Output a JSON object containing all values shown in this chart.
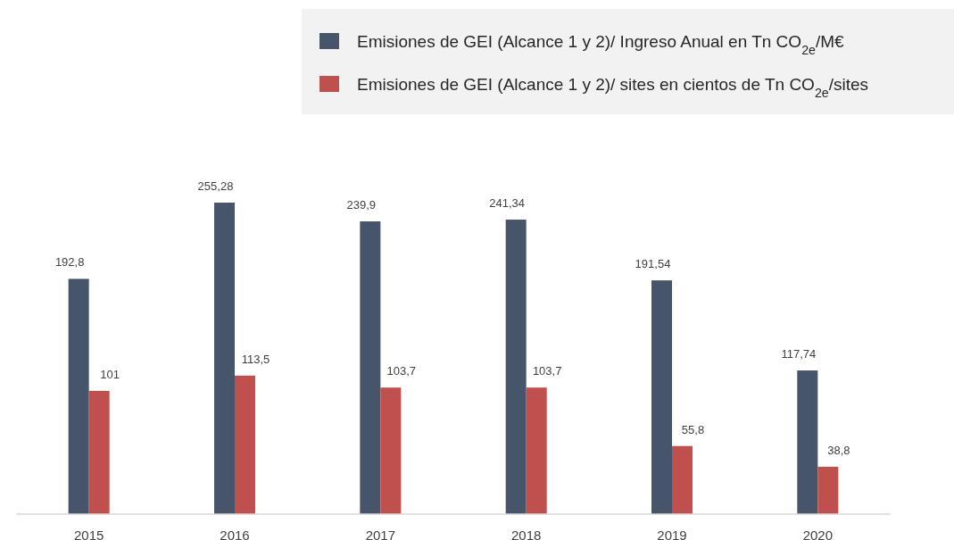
{
  "chart_data": {
    "type": "bar",
    "categories": [
      "2015",
      "2016",
      "2017",
      "2018",
      "2019",
      "2020"
    ],
    "series": [
      {
        "name": "Emisiones de GEI (Alcance 1 y 2)/ Ingreso Anual en Tn CO$_{2e}$/M€",
        "color": "#465569",
        "values": [
          192.8,
          255.28,
          239.9,
          241.34,
          191.54,
          117.74
        ],
        "value_labels": [
          "192,8",
          "255,28",
          "239,9",
          "241,34",
          "191,54",
          "117,74"
        ]
      },
      {
        "name": "Emisiones de GEI (Alcance 1 y 2)/ sites en cientos de Tn CO$_{2e}$/sites",
        "color": "#c0504d",
        "values": [
          101,
          113.5,
          103.7,
          103.7,
          55.8,
          38.8
        ],
        "value_labels": [
          "101",
          "113,5",
          "103,7",
          "103,7",
          "55,8",
          "38,8"
        ]
      }
    ],
    "tick_labels": "x",
    "legend": "top right"
  }
}
